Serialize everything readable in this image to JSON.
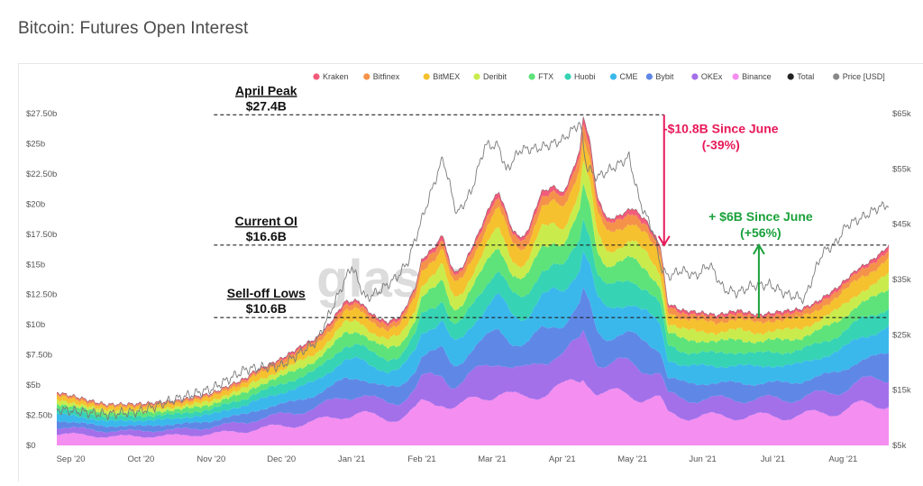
{
  "page": {
    "title": "Bitcoin: Futures Open Interest"
  },
  "watermark": "glassnode",
  "chart_data": {
    "type": "area",
    "title": "Bitcoin: Futures Open Interest",
    "x_ticks": [
      "Sep '20",
      "Oct '20",
      "Nov '20",
      "Dec '20",
      "Jan '21",
      "Feb '21",
      "Mar '21",
      "Apr '21",
      "May '21",
      "Jun '21",
      "Jul '21",
      "Aug '21"
    ],
    "x_tick_pos": [
      0.5,
      1.5,
      2.5,
      3.5,
      4.5,
      5.5,
      6.5,
      7.5,
      8.5,
      9.5,
      10.5,
      11.5
    ],
    "x_range": [
      0.3,
      12.15
    ],
    "left_axis": {
      "ylim": [
        0,
        27.5
      ],
      "ticks": [
        0,
        2.5,
        5,
        7.5,
        10,
        12.5,
        15,
        17.5,
        20,
        22.5,
        25,
        27.5
      ],
      "tick_labels": [
        "$0",
        "$2.50b",
        "$5b",
        "$7.50b",
        "$10b",
        "$12.50b",
        "$15b",
        "$17.50b",
        "$20b",
        "$22.50b",
        "$25b",
        "$27.50b"
      ]
    },
    "right_axis": {
      "ylim": [
        5,
        65
      ],
      "ticks": [
        5,
        15,
        25,
        35,
        45,
        55,
        65
      ],
      "tick_labels": [
        "$5k",
        "$15k",
        "$25k",
        "$35k",
        "$45k",
        "$55k",
        "$65k"
      ]
    },
    "legend": [
      {
        "name": "Kraken",
        "color": "#f25c7a"
      },
      {
        "name": "Bitfinex",
        "color": "#f5924a"
      },
      {
        "name": "BitMEX",
        "color": "#f5c12e"
      },
      {
        "name": "Deribit",
        "color": "#c9ec4c"
      },
      {
        "name": "FTX",
        "color": "#5ee37a"
      },
      {
        "name": "Huobi",
        "color": "#36d3b5"
      },
      {
        "name": "CME",
        "color": "#3ab8ec"
      },
      {
        "name": "Bybit",
        "color": "#5f88e6"
      },
      {
        "name": "OKEx",
        "color": "#a370ea"
      },
      {
        "name": "Binance",
        "color": "#f48ef0"
      },
      {
        "name": "Total",
        "color": "#222222"
      },
      {
        "name": "Price [USD]",
        "color": "#888888"
      }
    ],
    "total_oi_b": [
      [
        0.3,
        4.4
      ],
      [
        0.6,
        4.0
      ],
      [
        0.85,
        3.6
      ],
      [
        1.0,
        3.4
      ],
      [
        1.5,
        3.45
      ],
      [
        2.0,
        3.7
      ],
      [
        2.5,
        4.3
      ],
      [
        3.0,
        5.6
      ],
      [
        3.1,
        6.1
      ],
      [
        3.5,
        7.2
      ],
      [
        3.8,
        8.3
      ],
      [
        4.0,
        8.9
      ],
      [
        4.2,
        10.2
      ],
      [
        4.4,
        11.9
      ],
      [
        4.6,
        12.0
      ],
      [
        4.8,
        10.8
      ],
      [
        5.0,
        10.2
      ],
      [
        5.2,
        10.7
      ],
      [
        5.4,
        13.0
      ],
      [
        5.5,
        15.4
      ],
      [
        5.7,
        16.6
      ],
      [
        5.8,
        17.5
      ],
      [
        5.9,
        15.0
      ],
      [
        6.0,
        14.3
      ],
      [
        6.1,
        15.0
      ],
      [
        6.3,
        17.5
      ],
      [
        6.5,
        20.3
      ],
      [
        6.6,
        21.0
      ],
      [
        6.8,
        17.7
      ],
      [
        6.95,
        17.2
      ],
      [
        7.05,
        18.4
      ],
      [
        7.2,
        21.0
      ],
      [
        7.4,
        21.5
      ],
      [
        7.5,
        20.8
      ],
      [
        7.6,
        22.0
      ],
      [
        7.75,
        24.5
      ],
      [
        7.8,
        27.4
      ],
      [
        7.9,
        25.0
      ],
      [
        8.0,
        20.5
      ],
      [
        8.15,
        18.7
      ],
      [
        8.3,
        19.0
      ],
      [
        8.5,
        19.7
      ],
      [
        8.7,
        18.6
      ],
      [
        8.9,
        16.5
      ],
      [
        9.0,
        11.8
      ],
      [
        9.2,
        11.2
      ],
      [
        9.5,
        11.0
      ],
      [
        9.7,
        10.8
      ],
      [
        10.0,
        11.2
      ],
      [
        10.3,
        10.8
      ],
      [
        10.6,
        11.1
      ],
      [
        10.9,
        11.3
      ],
      [
        11.1,
        11.8
      ],
      [
        11.4,
        13.0
      ],
      [
        11.7,
        14.6
      ],
      [
        11.9,
        15.3
      ],
      [
        12.05,
        16.0
      ],
      [
        12.15,
        16.6
      ]
    ],
    "exchange_shares": [
      0.02,
      0.04,
      0.08,
      0.07,
      0.09,
      0.1,
      0.13,
      0.12,
      0.13,
      0.22
    ],
    "price_usd_k": [
      [
        0.3,
        11.5
      ],
      [
        1.0,
        10.6
      ],
      [
        1.5,
        11.2
      ],
      [
        2.0,
        13.4
      ],
      [
        2.5,
        15.2
      ],
      [
        3.0,
        18.8
      ],
      [
        3.5,
        19.4
      ],
      [
        4.0,
        23.8
      ],
      [
        4.3,
        32.0
      ],
      [
        4.5,
        37.5
      ],
      [
        4.7,
        31.5
      ],
      [
        4.9,
        33.0
      ],
      [
        5.15,
        35.5
      ],
      [
        5.3,
        38.2
      ],
      [
        5.55,
        47.8
      ],
      [
        5.8,
        57.0
      ],
      [
        6.0,
        46.8
      ],
      [
        6.2,
        50.8
      ],
      [
        6.4,
        59.3
      ],
      [
        6.6,
        59.1
      ],
      [
        6.7,
        54.6
      ],
      [
        6.9,
        58.5
      ],
      [
        7.15,
        58.7
      ],
      [
        7.3,
        59.3
      ],
      [
        7.5,
        60.2
      ],
      [
        7.75,
        63.4
      ],
      [
        7.85,
        55.2
      ],
      [
        8.0,
        53.5
      ],
      [
        8.3,
        55.8
      ],
      [
        8.45,
        57.2
      ],
      [
        8.6,
        49.2
      ],
      [
        8.8,
        43.5
      ],
      [
        8.9,
        37.5
      ],
      [
        9.0,
        35.5
      ],
      [
        9.2,
        36.7
      ],
      [
        9.4,
        35.6
      ],
      [
        9.6,
        37.8
      ],
      [
        9.8,
        33.2
      ],
      [
        10.0,
        32.6
      ],
      [
        10.2,
        33.9
      ],
      [
        10.45,
        34.1
      ],
      [
        10.7,
        32.3
      ],
      [
        10.95,
        31.5
      ],
      [
        11.2,
        39.8
      ],
      [
        11.4,
        41.6
      ],
      [
        11.55,
        44.8
      ],
      [
        11.8,
        46.4
      ],
      [
        12.0,
        48.0
      ],
      [
        12.15,
        48.6
      ]
    ],
    "annotations": [
      {
        "title": "April Peak",
        "value": "$27.4B",
        "y_b": 27.4,
        "x_start": 3.0,
        "x_end": 8.95
      },
      {
        "title": "Current OI",
        "value": "$16.6B",
        "y_b": 16.6,
        "x_start": 3.0,
        "x_end": 12.15
      },
      {
        "title": "Sell-off Lows",
        "value": "$10.6B",
        "y_b": 10.6,
        "x_start": 3.0,
        "x_end": 12.15
      }
    ],
    "arrows": [
      {
        "line1": "-$10.8B Since June",
        "line2": "(-39%)",
        "color": "#e8185a",
        "x": 8.95,
        "from_b": 27.4,
        "to_b": 16.6,
        "direction": "down"
      },
      {
        "line1": "+ $6B Since June",
        "line2": "(+56%)",
        "color": "#1aa13a",
        "x": 10.3,
        "from_b": 10.6,
        "to_b": 16.6,
        "direction": "up"
      }
    ]
  }
}
